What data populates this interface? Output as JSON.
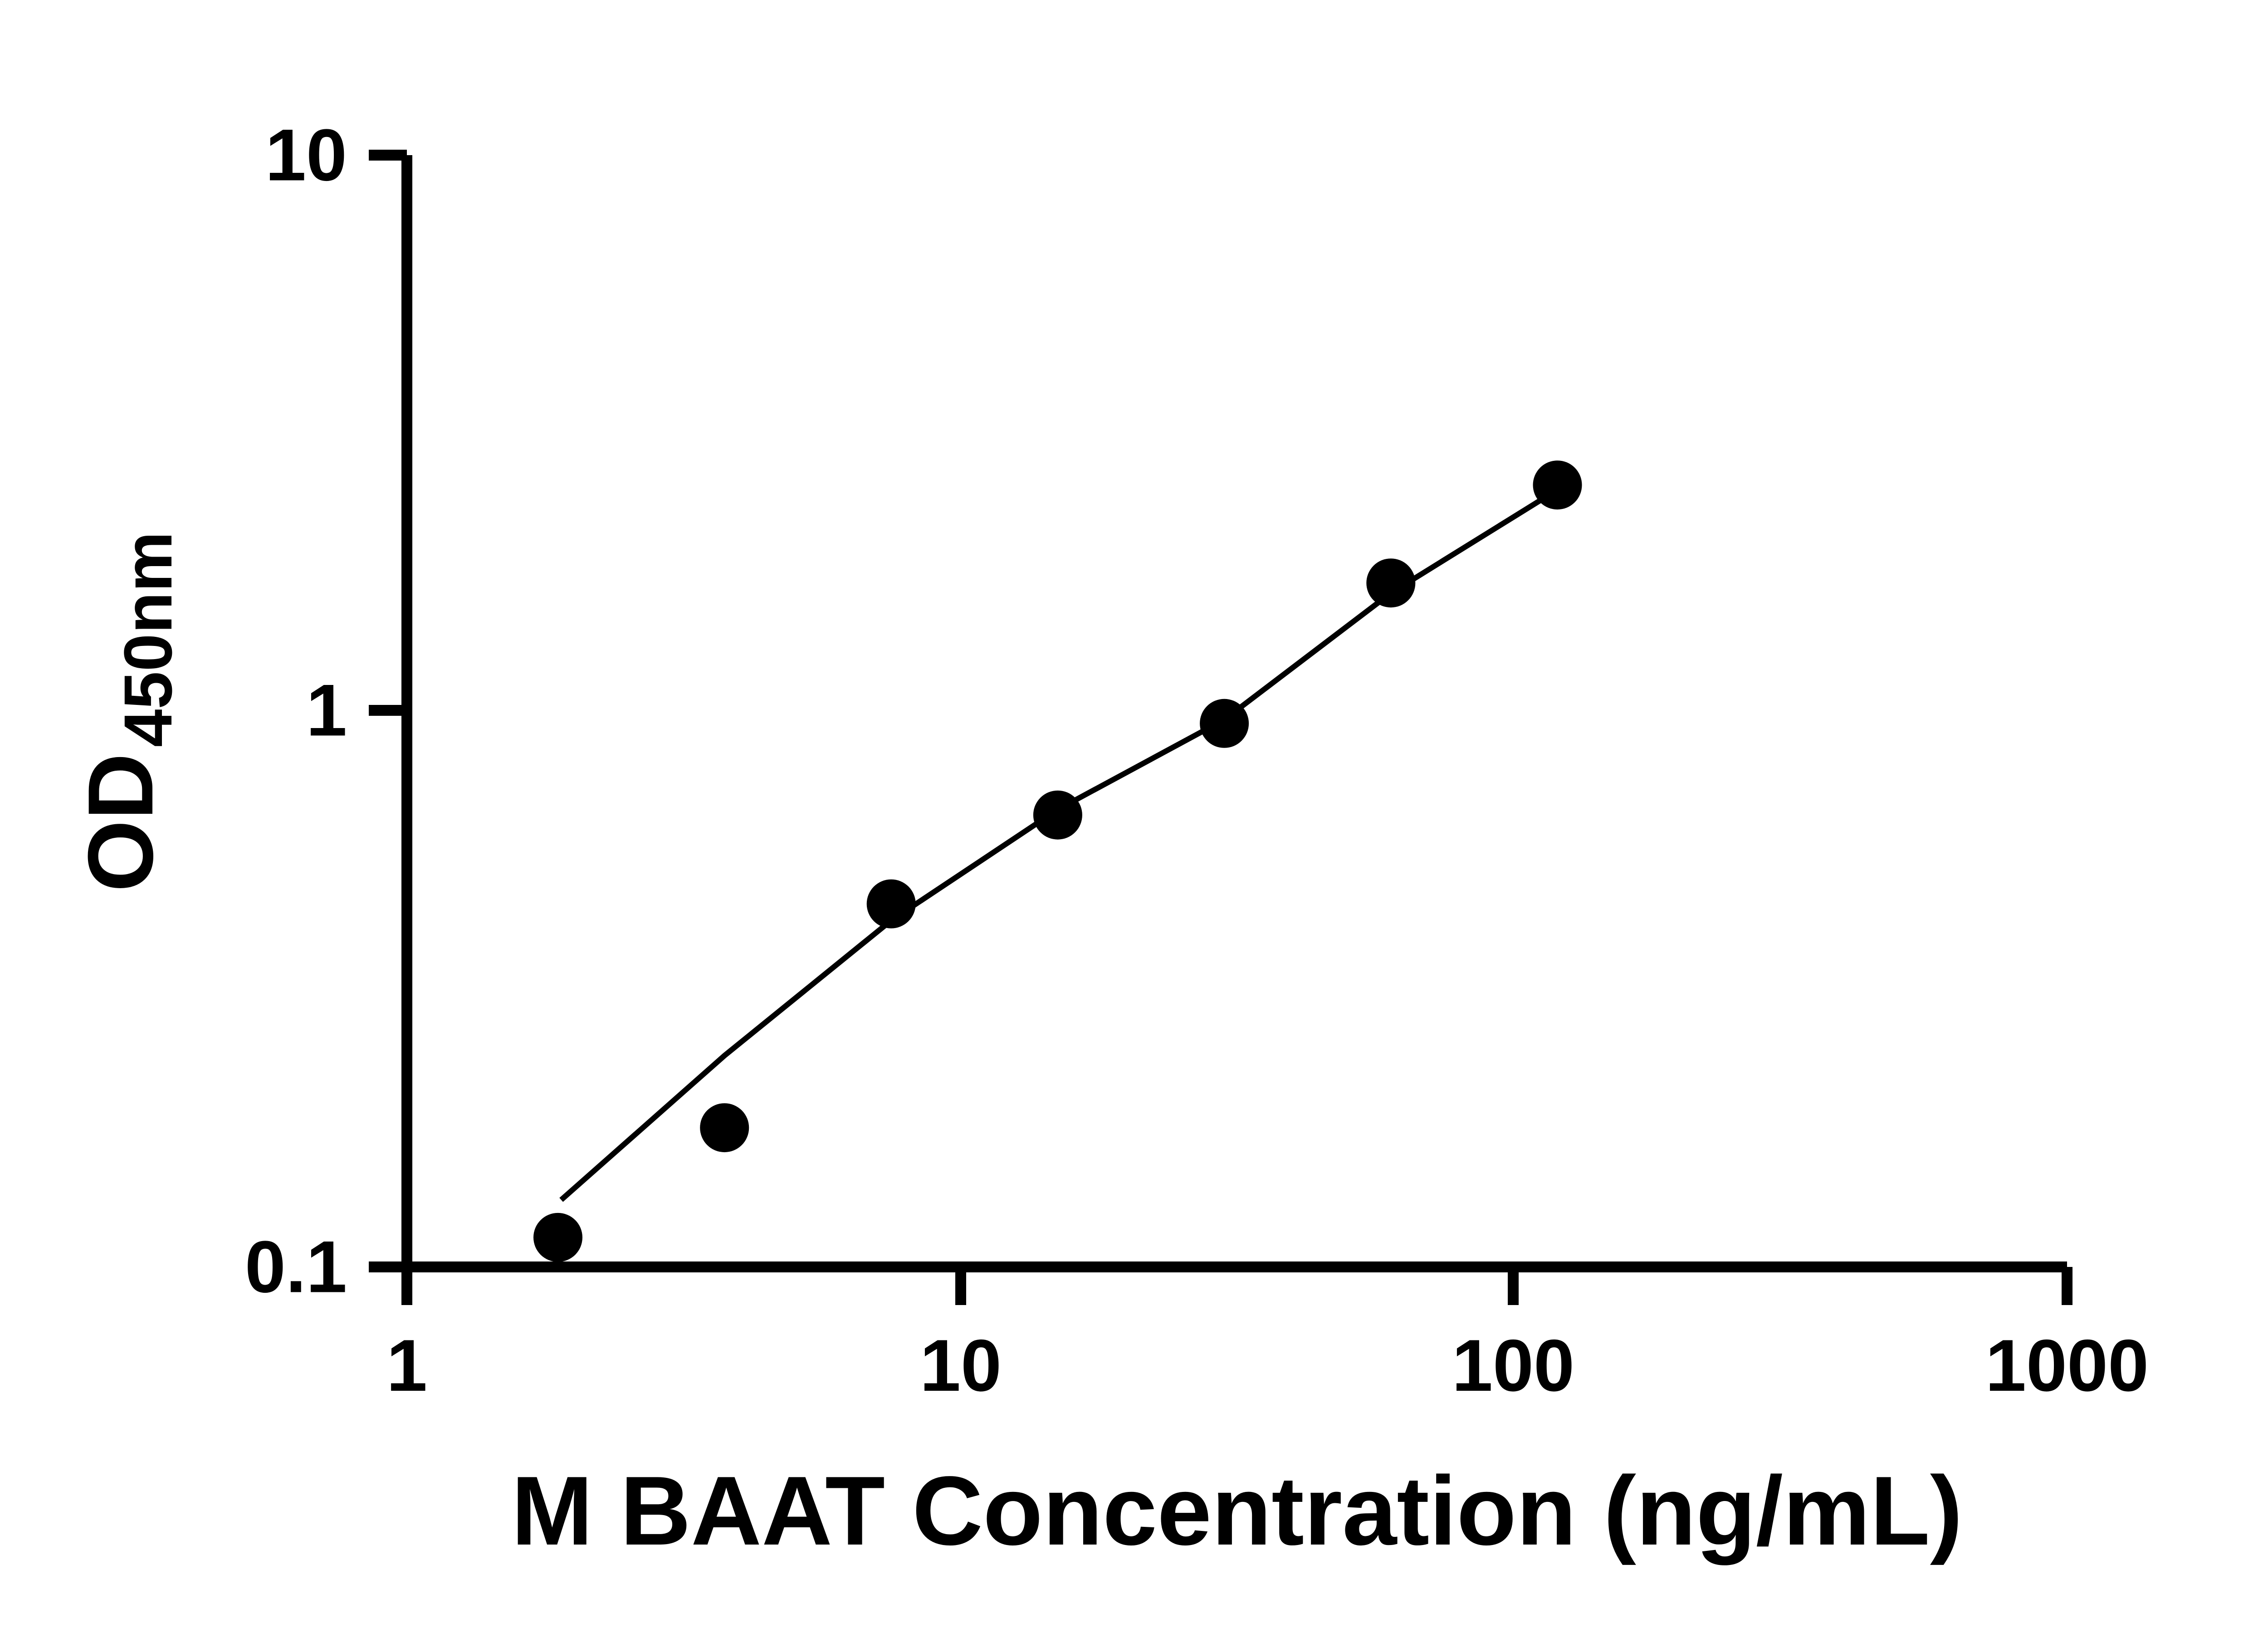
{
  "chart_data": {
    "type": "scatter",
    "title": "",
    "xlabel": "M BAAT Concentration (ng/mL)",
    "ylabel_main": "OD",
    "ylabel_sub": "450nm",
    "x_scale": "log",
    "y_scale": "log",
    "xlim": [
      1,
      1000
    ],
    "ylim": [
      0.1,
      10
    ],
    "grid": "off",
    "legend": "none",
    "x_ticks": [
      {
        "value": 1,
        "label": "1"
      },
      {
        "value": 10,
        "label": "10"
      },
      {
        "value": 100,
        "label": "100"
      },
      {
        "value": 1000,
        "label": "1000"
      }
    ],
    "y_ticks": [
      {
        "value": 0.1,
        "label": "0.1"
      },
      {
        "value": 1,
        "label": "1"
      },
      {
        "value": 10,
        "label": "10"
      }
    ],
    "points": [
      {
        "x": 1.875,
        "y": 0.113
      },
      {
        "x": 3.75,
        "y": 0.178
      },
      {
        "x": 7.5,
        "y": 0.45
      },
      {
        "x": 15,
        "y": 0.65
      },
      {
        "x": 30,
        "y": 0.95
      },
      {
        "x": 60,
        "y": 1.7
      },
      {
        "x": 120,
        "y": 2.55
      }
    ],
    "trend_line": [
      [
        1.9,
        0.132
      ],
      [
        3.75,
        0.24
      ],
      [
        7.5,
        0.42
      ],
      [
        15,
        0.665
      ],
      [
        30,
        0.965
      ],
      [
        60,
        1.63
      ],
      [
        120,
        2.5
      ]
    ],
    "colors": {
      "point": "#000000",
      "line": "#000000",
      "axis": "#000000",
      "background": "#ffffff"
    }
  }
}
